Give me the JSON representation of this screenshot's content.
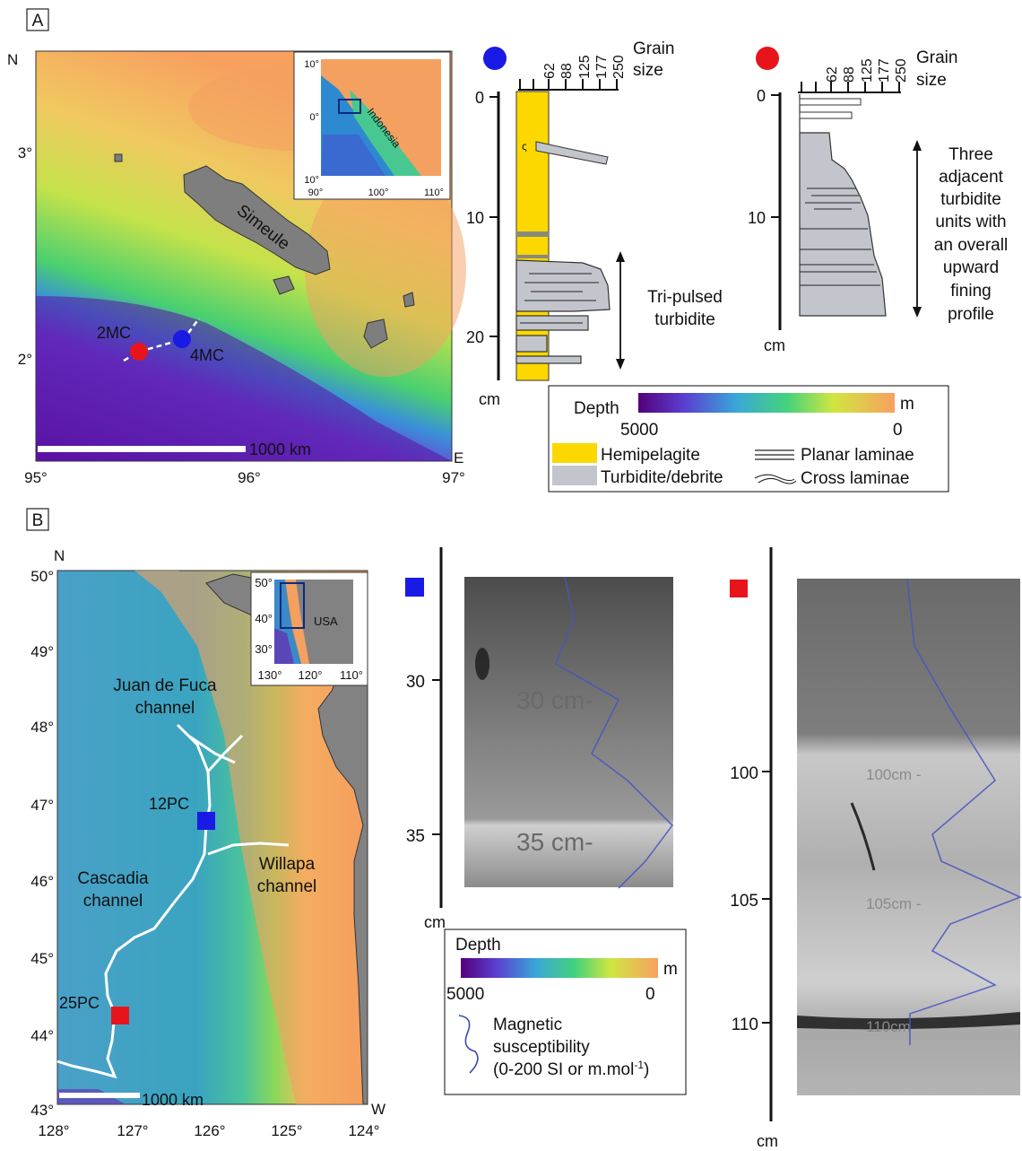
{
  "panel_a": {
    "label": "A",
    "map": {
      "north": "N",
      "east": "E",
      "lat_ticks": [
        "3°",
        "2°"
      ],
      "lon_ticks": [
        "95°",
        "96°",
        "97°"
      ],
      "island": "Simeule",
      "scale": "1000 km",
      "sites": [
        {
          "label": "2MC",
          "color": "#e8141b"
        },
        {
          "label": "4MC",
          "color": "#1a1ae6"
        }
      ],
      "inset": {
        "lat_ticks": [
          "10°",
          "0°",
          "10°"
        ],
        "lon_ticks": [
          "90°",
          "100°",
          "110°"
        ],
        "country": "Indonesia"
      }
    },
    "log_blue": {
      "grain_header": [
        "Grain",
        "size"
      ],
      "grain_ticks": [
        "62",
        "88",
        "125",
        "177",
        "250"
      ],
      "depth_ticks": [
        "0",
        "10",
        "20"
      ],
      "unit": "cm",
      "note": [
        "Tri-pulsed",
        "turbidite"
      ]
    },
    "log_red": {
      "grain_header": [
        "Grain",
        "size"
      ],
      "grain_ticks": [
        "62",
        "88",
        "125",
        "177",
        "250"
      ],
      "depth_ticks": [
        "0",
        "10"
      ],
      "unit": "cm",
      "note": [
        "Three",
        "adjacent",
        "turbidite",
        "units with",
        "an overall",
        "upward",
        "fining",
        "profile"
      ]
    },
    "legend": {
      "depth": "Depth",
      "unit": "m",
      "min": "5000",
      "max": "0",
      "hemipelagite": "Hemipelagite",
      "turbidite": "Turbidite/debrite",
      "planar": "Planar laminae",
      "cross": "Cross laminae",
      "hemipelagite_color": "#fcd800",
      "turbidite_color": "#c3c5cc"
    }
  },
  "panel_b": {
    "label": "B",
    "map": {
      "north": "N",
      "west": "W",
      "lat_ticks": [
        "50°",
        "49°",
        "48°",
        "47°",
        "46°",
        "45°",
        "44°",
        "43°"
      ],
      "lon_ticks": [
        "128°",
        "127°",
        "126°",
        "125°",
        "124°"
      ],
      "channels": [
        [
          "Juan de Fuca",
          "channel"
        ],
        [
          "Cascadia",
          "channel"
        ],
        [
          "Willapa",
          "channel"
        ]
      ],
      "sites": [
        {
          "label": "12PC",
          "color": "#1a1ae6"
        },
        {
          "label": "25PC",
          "color": "#e8141b"
        }
      ],
      "scale": "1000 km",
      "inset": {
        "lat_ticks": [
          "50°",
          "40°",
          "30°"
        ],
        "lon_ticks": [
          "130°",
          "120°",
          "110°"
        ],
        "country": "USA"
      }
    },
    "core_blue": {
      "depth_ticks": [
        "30",
        "35"
      ],
      "unit": "cm",
      "photo_labels": [
        "30 cm-",
        "35 cm-"
      ]
    },
    "core_red": {
      "depth_ticks": [
        "100",
        "105",
        "110"
      ],
      "unit": "cm",
      "photo_labels": [
        "100cm -",
        "105cm -",
        "110cm"
      ]
    },
    "legend": {
      "depth": "Depth",
      "unit": "m",
      "min": "5000",
      "max": "0",
      "mag": [
        "Magnetic",
        "susceptibility",
        "(0-200 SI or m.mol"
      ],
      "mag_sup": "-1",
      "mag_close": ")"
    }
  },
  "colors": {
    "deep": "#5a0fa0",
    "blue": "#3a78c8",
    "green": "#6ed646",
    "yellow": "#e8e040",
    "orange": "#f8a058",
    "land": "#828282"
  }
}
